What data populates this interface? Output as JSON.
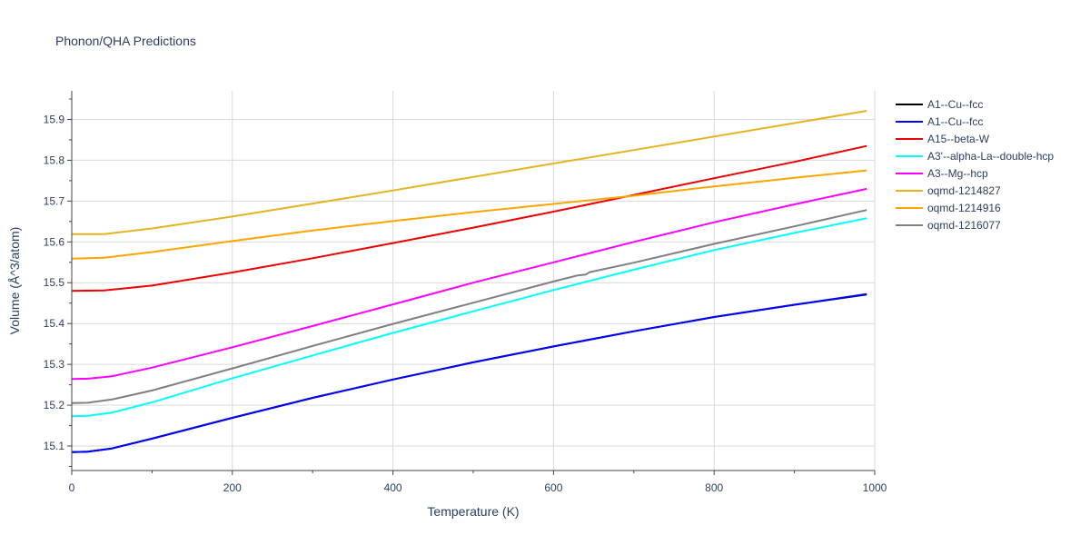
{
  "chart_data": {
    "type": "line",
    "title": "Phonon/QHA Predictions",
    "xlabel": "Temperature (K)",
    "ylabel": "Volume (Å^3/atom)",
    "xlim": [
      0,
      1000
    ],
    "ylim": [
      15.04,
      15.97
    ],
    "xticks": [
      0,
      200,
      400,
      600,
      800,
      1000
    ],
    "yticks": [
      15.1,
      15.2,
      15.3,
      15.4,
      15.5,
      15.6,
      15.7,
      15.8,
      15.9
    ],
    "grid": true,
    "legend_position": "right",
    "series": [
      {
        "name": "A1--Cu--fcc",
        "color": "#000000",
        "x": [
          0,
          20,
          50,
          100,
          200,
          300,
          400,
          500,
          600,
          700,
          800,
          900,
          990
        ],
        "y": [
          15.085,
          15.086,
          15.094,
          15.118,
          15.169,
          15.218,
          15.263,
          15.305,
          15.344,
          15.381,
          15.416,
          15.446,
          15.471
        ]
      },
      {
        "name": "A1--Cu--fcc",
        "color": "#0000ff",
        "x": [
          0,
          20,
          50,
          100,
          200,
          300,
          400,
          500,
          600,
          700,
          800,
          900,
          990
        ],
        "y": [
          15.085,
          15.086,
          15.094,
          15.118,
          15.169,
          15.218,
          15.263,
          15.305,
          15.344,
          15.381,
          15.416,
          15.446,
          15.472
        ]
      },
      {
        "name": "A15--beta-W",
        "color": "#ee0000",
        "x": [
          0,
          40,
          100,
          200,
          300,
          400,
          500,
          600,
          700,
          800,
          900,
          990
        ],
        "y": [
          15.48,
          15.481,
          15.493,
          15.525,
          15.56,
          15.597,
          15.635,
          15.674,
          15.715,
          15.756,
          15.796,
          15.835
        ]
      },
      {
        "name": "A3'--alpha-La--double-hcp",
        "color": "#00ffff",
        "x": [
          0,
          20,
          50,
          100,
          200,
          300,
          400,
          500,
          600,
          700,
          800,
          900,
          990
        ],
        "y": [
          15.173,
          15.174,
          15.182,
          15.207,
          15.266,
          15.322,
          15.377,
          15.43,
          15.482,
          15.532,
          15.58,
          15.622,
          15.658
        ]
      },
      {
        "name": "A3--Mg--hcp",
        "color": "#ff00ff",
        "x": [
          0,
          20,
          50,
          100,
          200,
          300,
          400,
          500,
          600,
          700,
          800,
          900,
          990
        ],
        "y": [
          15.264,
          15.265,
          15.271,
          15.292,
          15.342,
          15.394,
          15.447,
          15.5,
          15.55,
          15.6,
          15.648,
          15.692,
          15.73
        ]
      },
      {
        "name": "oqmd-1214827",
        "color": "#e6b320",
        "x": [
          0,
          40,
          100,
          200,
          300,
          400,
          500,
          600,
          700,
          800,
          900,
          990
        ],
        "y": [
          15.619,
          15.619,
          15.633,
          15.662,
          15.694,
          15.726,
          15.759,
          15.792,
          15.825,
          15.858,
          15.891,
          15.921
        ]
      },
      {
        "name": "oqmd-1214916",
        "color": "#ffa500",
        "x": [
          0,
          40,
          100,
          200,
          300,
          400,
          500,
          600,
          700,
          800,
          900,
          990
        ],
        "y": [
          15.559,
          15.561,
          15.575,
          15.602,
          15.628,
          15.651,
          15.673,
          15.693,
          15.713,
          15.736,
          15.757,
          15.775
        ]
      },
      {
        "name": "oqmd-1216077",
        "color": "#808080",
        "x": [
          0,
          20,
          50,
          100,
          200,
          300,
          400,
          500,
          600,
          630,
          640,
          645,
          700,
          800,
          900,
          990
        ],
        "y": [
          15.205,
          15.206,
          15.214,
          15.236,
          15.29,
          15.345,
          15.399,
          15.451,
          15.503,
          15.518,
          15.52,
          15.526,
          15.549,
          15.595,
          15.638,
          15.678
        ]
      }
    ]
  }
}
